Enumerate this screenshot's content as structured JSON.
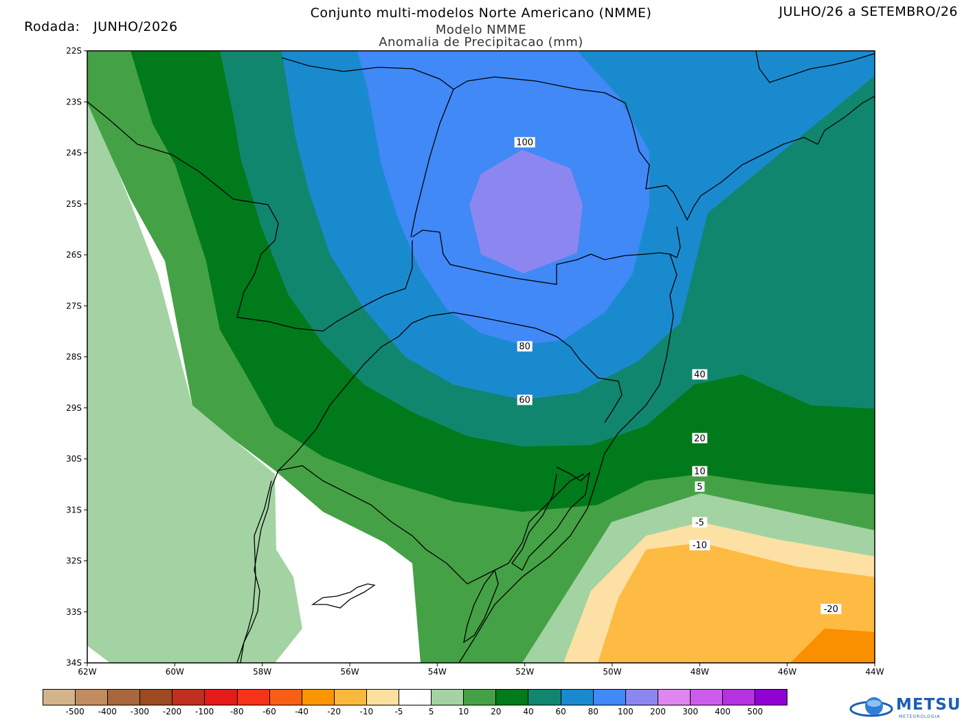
{
  "header": {
    "left_label": "Rodada:",
    "run": "JUNHO/2026",
    "title": "Conjunto multi-modelos Norte Americano (NMME)",
    "period": "JULHO/26 a SETEMBRO/26",
    "model": "Modelo NMME",
    "variable": "Anomalia de Precipitacao (mm)"
  },
  "axes": {
    "lat_ticks": [
      "22S",
      "23S",
      "24S",
      "25S",
      "26S",
      "27S",
      "28S",
      "29S",
      "30S",
      "31S",
      "32S",
      "33S",
      "34S"
    ],
    "lon_ticks": [
      "62W",
      "60W",
      "58W",
      "56W",
      "54W",
      "52W",
      "50W",
      "48W",
      "46W",
      "44W"
    ]
  },
  "contour_labels": [
    {
      "text": "100",
      "lon": -52.0,
      "lat": -23.8
    },
    {
      "text": "80",
      "lon": -52.0,
      "lat": -27.8
    },
    {
      "text": "60",
      "lon": -52.0,
      "lat": -28.85
    },
    {
      "text": "40",
      "lon": -48.0,
      "lat": -28.35
    },
    {
      "text": "20",
      "lon": -48.0,
      "lat": -29.6
    },
    {
      "text": "10",
      "lon": -48.0,
      "lat": -30.25
    },
    {
      "text": "5",
      "lon": -48.0,
      "lat": -30.55
    },
    {
      "text": "-5",
      "lon": -48.0,
      "lat": -31.25
    },
    {
      "text": "-10",
      "lon": -48.0,
      "lat": -31.7
    },
    {
      "text": "-20",
      "lon": -45.0,
      "lat": -32.95
    }
  ],
  "colors": {
    "pos5": "#a3d3a2",
    "pos10": "#45a145",
    "pos20": "#007a1a",
    "pos40": "#11866e",
    "pos60": "#1a8acf",
    "pos80": "#4089f6",
    "pos100": "#8c87f0",
    "neg5": "#fde0a4",
    "neg10": "#fdbb43",
    "neg20": "#fa8f00"
  },
  "colorbar": {
    "colors": [
      "#d3b48c",
      "#c08c60",
      "#a8663c",
      "#9b4a22",
      "#c03020",
      "#e51a1a",
      "#f5321a",
      "#f85f14",
      "#fb9600",
      "#fbb83e",
      "#fddf9e",
      "#ffffff",
      "#a3d3a2",
      "#45a145",
      "#007a1a",
      "#11866e",
      "#1a8acf",
      "#4089f6",
      "#8c87f0",
      "#dd87ef",
      "#cd5cec",
      "#b432e0",
      "#9000d2"
    ],
    "labels": [
      "-500",
      "-400",
      "-300",
      "-200",
      "-100",
      "-80",
      "-60",
      "-40",
      "-20",
      "-10",
      "-5",
      "5",
      "10",
      "20",
      "40",
      "60",
      "80",
      "100",
      "200",
      "300",
      "400",
      "500"
    ]
  },
  "logo": {
    "name": "METSUL",
    "tagline": "METEOROLOGIA"
  }
}
